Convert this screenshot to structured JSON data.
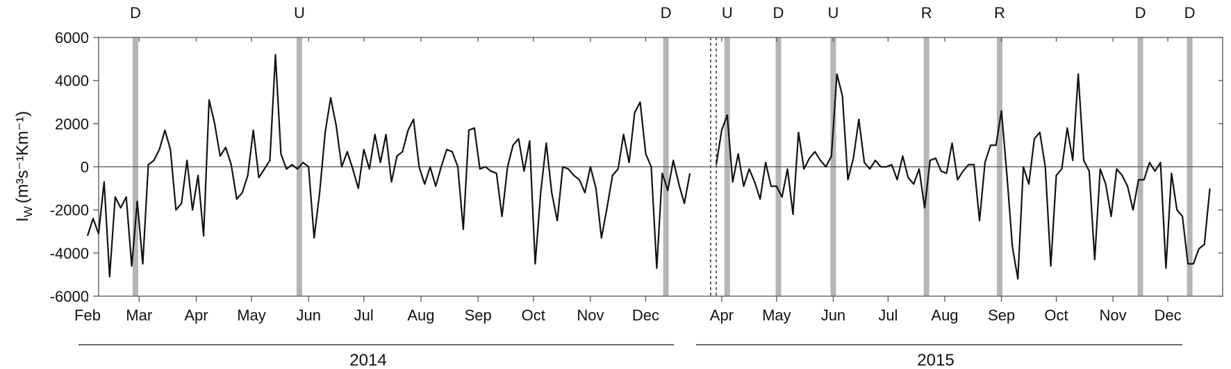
{
  "chart_data": {
    "type": "line",
    "ylabel": "I",
    "ylabel_sub": "W",
    "ylabel_units": "(m³s⁻¹Km⁻¹)",
    "ylim": [
      -6000,
      6000
    ],
    "yticks": [
      6000,
      4000,
      2000,
      0,
      -2000,
      -4000,
      -6000
    ],
    "tick_labels": [
      "6000",
      "4000",
      "2000",
      "0",
      "-2000",
      "-4000",
      "-6000"
    ],
    "zero_line": true,
    "months_2014": [
      "Feb",
      "Mar",
      "Apr",
      "May",
      "Jun",
      "Jul",
      "Aug",
      "Sep",
      "Oct",
      "Nov",
      "Dec"
    ],
    "months_2015": [
      "Apr",
      "May",
      "Jun",
      "Jul",
      "Aug",
      "Sep",
      "Oct",
      "Nov",
      "Dec"
    ],
    "years": [
      "2014",
      "2015"
    ],
    "event_bands": [
      {
        "label": "D",
        "date": "2014-02-27"
      },
      {
        "label": "U",
        "date": "2014-05-27"
      },
      {
        "label": "D",
        "date": "2014-12-12"
      },
      {
        "label": "U",
        "date": "2015-04-04"
      },
      {
        "label": "D",
        "date": "2015-05-02"
      },
      {
        "label": "U",
        "date": "2015-06-01"
      },
      {
        "label": "R",
        "date": "2015-07-22"
      },
      {
        "label": "R",
        "date": "2015-08-31"
      },
      {
        "label": "D",
        "date": "2015-11-16"
      },
      {
        "label": "D",
        "date": "2015-12-13"
      }
    ],
    "series": [
      {
        "segments": [
          [
            [
              "2014-02-01",
              -3200
            ],
            [
              "2014-02-04",
              -2400
            ],
            [
              "2014-02-07",
              -3100
            ],
            [
              "2014-02-10",
              -700
            ],
            [
              "2014-02-13",
              -5100
            ],
            [
              "2014-02-16",
              -1400
            ],
            [
              "2014-02-19",
              -1900
            ],
            [
              "2014-02-22",
              -1400
            ],
            [
              "2014-02-25",
              -4600
            ],
            [
              "2014-02-28",
              -1600
            ],
            [
              "2014-03-03",
              -4500
            ],
            [
              "2014-03-06",
              100
            ],
            [
              "2014-03-09",
              300
            ],
            [
              "2014-03-12",
              800
            ],
            [
              "2014-03-15",
              1700
            ],
            [
              "2014-03-18",
              800
            ],
            [
              "2014-03-21",
              -2000
            ],
            [
              "2014-03-24",
              -1700
            ],
            [
              "2014-03-27",
              300
            ],
            [
              "2014-03-30",
              -2000
            ],
            [
              "2014-04-02",
              -400
            ],
            [
              "2014-04-05",
              -3200
            ],
            [
              "2014-04-08",
              3100
            ],
            [
              "2014-04-11",
              2000
            ],
            [
              "2014-04-14",
              500
            ],
            [
              "2014-04-17",
              900
            ],
            [
              "2014-04-20",
              100
            ],
            [
              "2014-04-23",
              -1500
            ],
            [
              "2014-04-26",
              -1200
            ],
            [
              "2014-04-29",
              -400
            ],
            [
              "2014-05-02",
              1700
            ],
            [
              "2014-05-05",
              -500
            ],
            [
              "2014-05-08",
              -100
            ],
            [
              "2014-05-11",
              300
            ],
            [
              "2014-05-14",
              5200
            ],
            [
              "2014-05-17",
              600
            ],
            [
              "2014-05-20",
              -100
            ],
            [
              "2014-05-23",
              100
            ],
            [
              "2014-05-26",
              -100
            ],
            [
              "2014-05-29",
              200
            ],
            [
              "2014-06-01",
              0
            ],
            [
              "2014-06-04",
              -3300
            ],
            [
              "2014-06-07",
              -1200
            ],
            [
              "2014-06-10",
              1600
            ],
            [
              "2014-06-13",
              3200
            ],
            [
              "2014-06-16",
              1900
            ],
            [
              "2014-06-19",
              0
            ],
            [
              "2014-06-22",
              700
            ],
            [
              "2014-06-25",
              -100
            ],
            [
              "2014-06-28",
              -1000
            ],
            [
              "2014-07-01",
              800
            ],
            [
              "2014-07-04",
              -100
            ],
            [
              "2014-07-07",
              1500
            ],
            [
              "2014-07-10",
              200
            ],
            [
              "2014-07-13",
              1500
            ],
            [
              "2014-07-16",
              -700
            ],
            [
              "2014-07-19",
              500
            ],
            [
              "2014-07-22",
              700
            ],
            [
              "2014-07-25",
              1700
            ],
            [
              "2014-07-28",
              2200
            ],
            [
              "2014-07-31",
              0
            ],
            [
              "2014-08-03",
              -800
            ],
            [
              "2014-08-06",
              0
            ],
            [
              "2014-08-09",
              -900
            ],
            [
              "2014-08-12",
              0
            ],
            [
              "2014-08-15",
              800
            ],
            [
              "2014-08-18",
              700
            ],
            [
              "2014-08-21",
              0
            ],
            [
              "2014-08-24",
              -2900
            ],
            [
              "2014-08-27",
              1700
            ],
            [
              "2014-08-30",
              1800
            ],
            [
              "2014-09-02",
              -100
            ],
            [
              "2014-09-05",
              0
            ],
            [
              "2014-09-08",
              -200
            ],
            [
              "2014-09-11",
              -300
            ],
            [
              "2014-09-14",
              -2300
            ],
            [
              "2014-09-17",
              0
            ],
            [
              "2014-09-20",
              1000
            ],
            [
              "2014-09-23",
              1300
            ],
            [
              "2014-09-26",
              -200
            ],
            [
              "2014-09-29",
              1200
            ],
            [
              "2014-10-02",
              -4500
            ],
            [
              "2014-10-05",
              -1200
            ],
            [
              "2014-10-08",
              1100
            ],
            [
              "2014-10-11",
              -1200
            ],
            [
              "2014-10-14",
              -2500
            ],
            [
              "2014-10-17",
              0
            ],
            [
              "2014-10-20",
              -100
            ],
            [
              "2014-10-23",
              -400
            ],
            [
              "2014-10-26",
              -600
            ],
            [
              "2014-10-29",
              -1200
            ],
            [
              "2014-11-01",
              0
            ],
            [
              "2014-11-04",
              -1000
            ],
            [
              "2014-11-07",
              -3300
            ],
            [
              "2014-11-10",
              -1900
            ],
            [
              "2014-11-13",
              -400
            ],
            [
              "2014-11-16",
              -100
            ],
            [
              "2014-11-19",
              1500
            ],
            [
              "2014-11-22",
              200
            ],
            [
              "2014-11-25",
              2500
            ],
            [
              "2014-11-28",
              3000
            ],
            [
              "2014-12-01",
              600
            ],
            [
              "2014-12-04",
              0
            ],
            [
              "2014-12-07",
              -4700
            ],
            [
              "2014-12-10",
              -300
            ],
            [
              "2014-12-13",
              -1100
            ],
            [
              "2014-12-16",
              300
            ],
            [
              "2014-12-19",
              -800
            ],
            [
              "2014-12-22",
              -1700
            ],
            [
              "2014-12-25",
              -300
            ]
          ],
          [
            [
              "2015-03-29",
              100
            ],
            [
              "2015-04-01",
              1700
            ],
            [
              "2015-04-04",
              2400
            ],
            [
              "2015-04-07",
              -700
            ],
            [
              "2015-04-10",
              600
            ],
            [
              "2015-04-13",
              -900
            ],
            [
              "2015-04-16",
              -100
            ],
            [
              "2015-04-19",
              -700
            ],
            [
              "2015-04-22",
              -1500
            ],
            [
              "2015-04-25",
              200
            ],
            [
              "2015-04-28",
              -900
            ],
            [
              "2015-05-01",
              -900
            ],
            [
              "2015-05-04",
              -1400
            ],
            [
              "2015-05-07",
              -100
            ],
            [
              "2015-05-10",
              -2200
            ],
            [
              "2015-05-13",
              1600
            ],
            [
              "2015-05-16",
              -100
            ],
            [
              "2015-05-19",
              400
            ],
            [
              "2015-05-22",
              700
            ],
            [
              "2015-05-25",
              300
            ],
            [
              "2015-05-28",
              0
            ],
            [
              "2015-05-31",
              500
            ],
            [
              "2015-06-03",
              4300
            ],
            [
              "2015-06-06",
              3300
            ],
            [
              "2015-06-09",
              -600
            ],
            [
              "2015-06-12",
              400
            ],
            [
              "2015-06-15",
              2200
            ],
            [
              "2015-06-18",
              200
            ],
            [
              "2015-06-21",
              -100
            ],
            [
              "2015-06-24",
              300
            ],
            [
              "2015-06-27",
              0
            ],
            [
              "2015-06-30",
              0
            ],
            [
              "2015-07-03",
              100
            ],
            [
              "2015-07-06",
              -600
            ],
            [
              "2015-07-09",
              500
            ],
            [
              "2015-07-12",
              -500
            ],
            [
              "2015-07-15",
              -800
            ],
            [
              "2015-07-18",
              -100
            ],
            [
              "2015-07-21",
              -1900
            ],
            [
              "2015-07-24",
              300
            ],
            [
              "2015-07-27",
              400
            ],
            [
              "2015-07-30",
              -200
            ],
            [
              "2015-08-02",
              -300
            ],
            [
              "2015-08-05",
              1100
            ],
            [
              "2015-08-08",
              -600
            ],
            [
              "2015-08-11",
              -200
            ],
            [
              "2015-08-14",
              100
            ],
            [
              "2015-08-17",
              100
            ],
            [
              "2015-08-20",
              -2500
            ],
            [
              "2015-08-23",
              200
            ],
            [
              "2015-08-26",
              1000
            ],
            [
              "2015-08-29",
              1000
            ],
            [
              "2015-09-01",
              2600
            ],
            [
              "2015-09-04",
              -400
            ],
            [
              "2015-09-07",
              -3700
            ],
            [
              "2015-09-10",
              -5200
            ],
            [
              "2015-09-13",
              0
            ],
            [
              "2015-09-16",
              -800
            ],
            [
              "2015-09-19",
              1300
            ],
            [
              "2015-09-22",
              1600
            ],
            [
              "2015-09-25",
              0
            ],
            [
              "2015-09-28",
              -4600
            ],
            [
              "2015-10-01",
              -400
            ],
            [
              "2015-10-04",
              -100
            ],
            [
              "2015-10-07",
              1800
            ],
            [
              "2015-10-10",
              300
            ],
            [
              "2015-10-13",
              4300
            ],
            [
              "2015-10-16",
              300
            ],
            [
              "2015-10-19",
              -200
            ],
            [
              "2015-10-22",
              -4300
            ],
            [
              "2015-10-25",
              -100
            ],
            [
              "2015-10-28",
              -800
            ],
            [
              "2015-10-31",
              -2300
            ],
            [
              "2015-11-03",
              -100
            ],
            [
              "2015-11-06",
              -400
            ],
            [
              "2015-11-09",
              -900
            ],
            [
              "2015-11-12",
              -2000
            ],
            [
              "2015-11-15",
              -600
            ],
            [
              "2015-11-18",
              -600
            ],
            [
              "2015-11-21",
              200
            ],
            [
              "2015-11-24",
              -200
            ],
            [
              "2015-11-27",
              200
            ],
            [
              "2015-11-30",
              -4700
            ],
            [
              "2015-12-03",
              -300
            ],
            [
              "2015-12-06",
              -2000
            ],
            [
              "2015-12-09",
              -2300
            ],
            [
              "2015-12-12",
              -4500
            ],
            [
              "2015-12-15",
              -4500
            ],
            [
              "2015-12-18",
              -3800
            ],
            [
              "2015-12-21",
              -3600
            ],
            [
              "2015-12-24",
              -1000
            ]
          ]
        ]
      }
    ],
    "colors": {
      "line": "#111111",
      "band": "#b5b5b5",
      "axis": "#555555"
    }
  }
}
